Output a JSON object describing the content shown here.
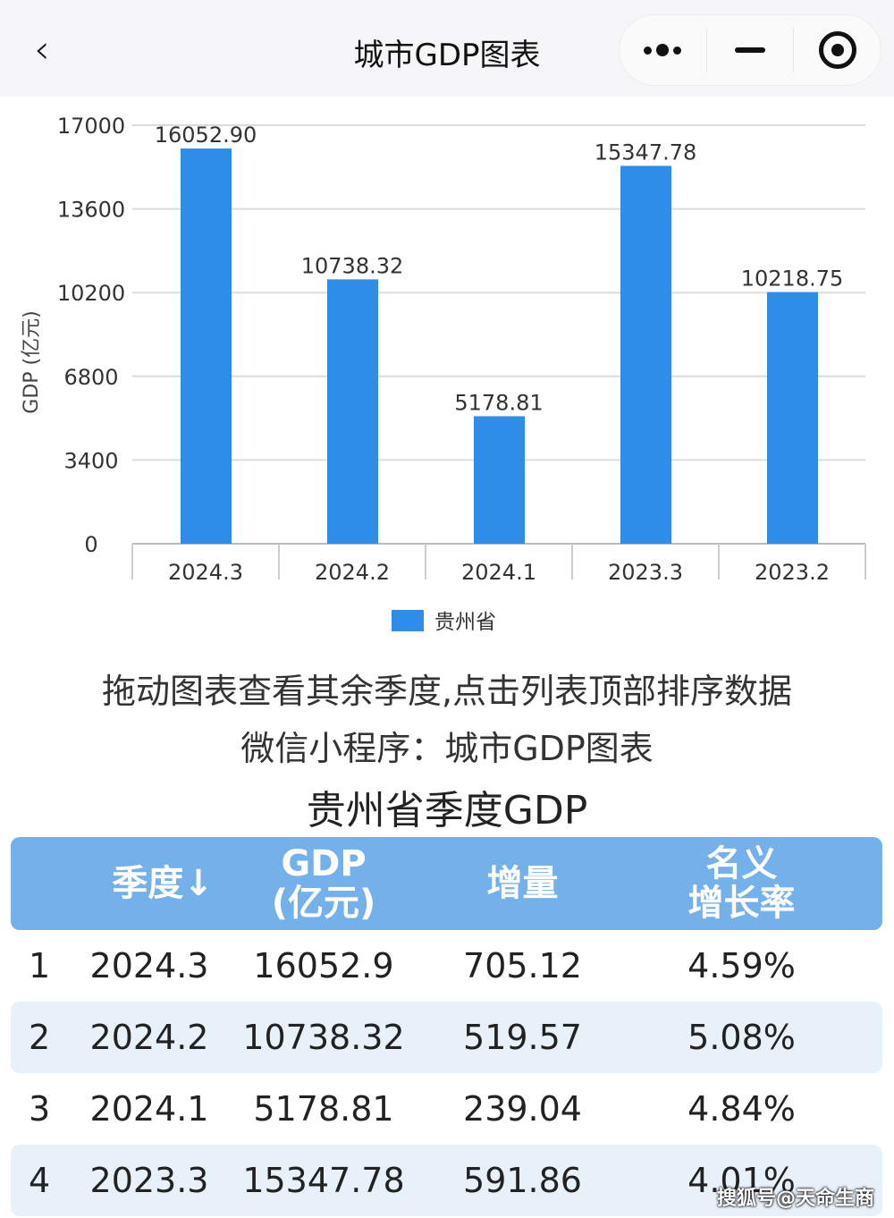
{
  "header": {
    "back_icon": "chevron-left-icon",
    "title": "城市GDP图表",
    "more_icon": "more-dots-icon",
    "minimize_icon": "minus-icon",
    "close_icon": "target-circle-icon"
  },
  "chart_data": {
    "type": "bar",
    "categories": [
      "2024.3",
      "2024.2",
      "2024.1",
      "2023.3",
      "2023.2"
    ],
    "series": [
      {
        "name": "贵州省",
        "values": [
          16052.9,
          10738.32,
          5178.81,
          15347.78,
          10218.75
        ],
        "labels": [
          "16052.90",
          "10738.32",
          "5178.81",
          "15347.78",
          "10218.75"
        ],
        "color": "#2e8de6"
      }
    ],
    "ylabel": "GDP (亿元)",
    "ylim": [
      0,
      17000
    ],
    "yticks": [
      0,
      3400,
      6800,
      10200,
      13600,
      17000
    ],
    "grid": true,
    "legend": "bottom"
  },
  "hints": {
    "drag": "拖动图表查看其余季度,点击列表顶部排序数据",
    "miniprogram": "微信小程序：城市GDP图表",
    "table_title": "贵州省季度GDP"
  },
  "table": {
    "headers": [
      "",
      "季度↓",
      "GDP\n(亿元)",
      "增量",
      "名义\n增长率"
    ],
    "rows": [
      [
        "1",
        "2024.3",
        "16052.9",
        "705.12",
        "4.59%"
      ],
      [
        "2",
        "2024.2",
        "10738.32",
        "519.57",
        "5.08%"
      ],
      [
        "3",
        "2024.1",
        "5178.81",
        "239.04",
        "4.84%"
      ],
      [
        "4",
        "2023.3",
        "15347.78",
        "591.86",
        "4.01%"
      ]
    ]
  },
  "watermark": "搜狐号@天命生商",
  "colors": {
    "bar": "#2e8de6",
    "table_header": "#74b0ea",
    "row_alt": "#e8f1fa"
  }
}
